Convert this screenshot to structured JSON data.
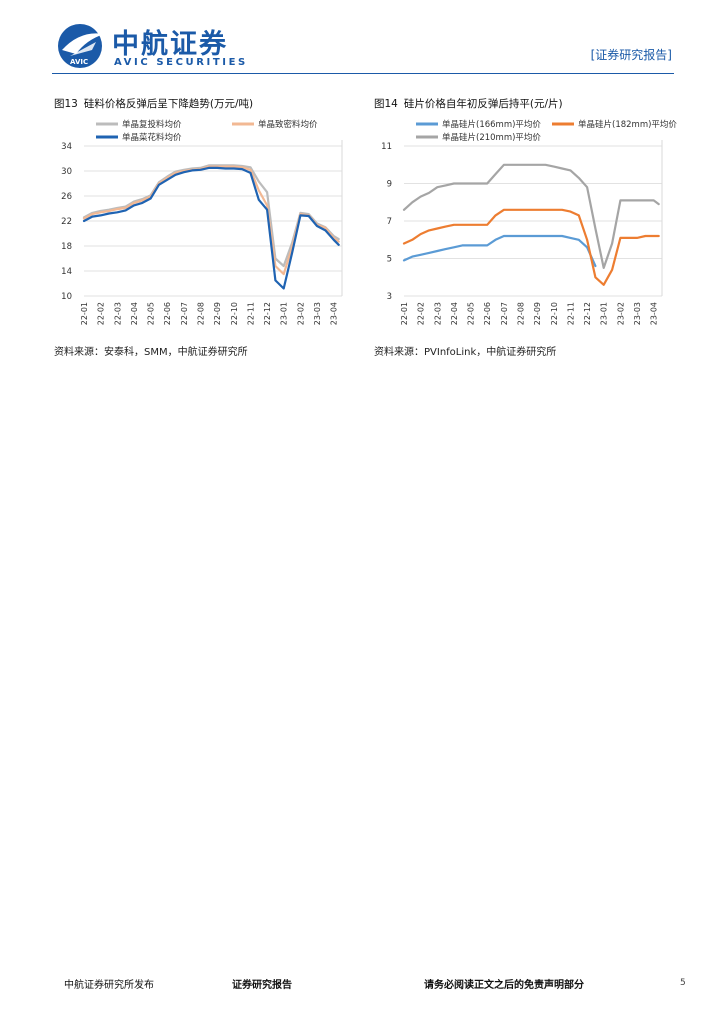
{
  "header": {
    "logo_cn": "中航证券",
    "logo_en": "AVIC SECURITIES",
    "logo_mark": "AVIC",
    "report_tag": "[证券研究报告]",
    "brand_color": "#1b5aa8"
  },
  "figures": [
    {
      "fig_no": "图13",
      "title": "硅料价格反弹后呈下降趋势(万元/吨)",
      "source": "资料来源：安泰科，SMM，中航证券研究所"
    },
    {
      "fig_no": "图14",
      "title": "硅片价格自年初反弹后持平(元/片)",
      "source": "资料来源：PVInfoLink，中航证券研究所"
    }
  ],
  "chart_data": [
    {
      "type": "line",
      "title": "硅料价格反弹后呈下降趋势(万元/吨)",
      "ylim": [
        10,
        34
      ],
      "yticks": [
        10,
        14,
        18,
        22,
        26,
        30,
        34
      ],
      "categories": [
        "22-01",
        "22-02",
        "22-03",
        "22-04",
        "22-05",
        "22-06",
        "22-07",
        "22-08",
        "22-09",
        "22-10",
        "22-11",
        "22-12",
        "23-01",
        "23-02",
        "23-03",
        "23-04"
      ],
      "x": [
        0,
        0.5,
        1,
        1.5,
        2,
        2.5,
        3,
        3.5,
        4,
        4.5,
        5,
        5.5,
        6,
        6.5,
        7,
        7.5,
        8,
        8.5,
        9,
        9.5,
        10,
        10.5,
        11,
        11.5,
        12,
        12.5,
        13,
        13.5,
        14,
        14.5,
        15,
        15.3
      ],
      "legend_position": "top",
      "series": [
        {
          "name": "单晶复投料均价",
          "color": "#bcbcbc",
          "values": [
            22.6,
            23.3,
            23.6,
            23.8,
            24.1,
            24.3,
            25.1,
            25.5,
            26.1,
            28.2,
            29.1,
            29.9,
            30.2,
            30.4,
            30.5,
            30.9,
            30.9,
            30.9,
            30.9,
            30.8,
            30.6,
            28.3,
            26.6,
            16.0,
            14.8,
            18.5,
            23.3,
            23.1,
            21.6,
            21.0,
            19.6,
            19.1
          ]
        },
        {
          "name": "单晶致密料均价",
          "color": "#f2b893",
          "values": [
            22.4,
            23.1,
            23.4,
            23.6,
            23.9,
            24.1,
            24.9,
            25.3,
            25.9,
            28.0,
            28.9,
            29.7,
            30.0,
            30.2,
            30.3,
            30.7,
            30.7,
            30.7,
            30.7,
            30.6,
            30.2,
            26.9,
            24.5,
            14.8,
            13.5,
            17.8,
            23.1,
            22.9,
            21.4,
            20.9,
            19.3,
            18.7
          ]
        },
        {
          "name": "单晶菜花料均价",
          "color": "#1f63b2",
          "values": [
            22.0,
            22.7,
            22.9,
            23.2,
            23.4,
            23.7,
            24.5,
            24.9,
            25.6,
            27.8,
            28.6,
            29.4,
            29.8,
            30.1,
            30.2,
            30.5,
            30.5,
            30.4,
            30.4,
            30.3,
            29.7,
            25.4,
            23.8,
            12.5,
            11.2,
            16.9,
            22.9,
            22.8,
            21.2,
            20.5,
            19.0,
            18.2
          ]
        }
      ]
    },
    {
      "type": "line",
      "title": "硅片价格自年初反弹后持平(元/片)",
      "ylim": [
        3,
        11
      ],
      "yticks": [
        3,
        5,
        7,
        9,
        11
      ],
      "categories": [
        "22-01",
        "22-02",
        "22-03",
        "22-04",
        "22-05",
        "22-06",
        "22-07",
        "22-08",
        "22-09",
        "22-10",
        "22-11",
        "22-12",
        "23-01",
        "23-02",
        "23-03",
        "23-04"
      ],
      "x": [
        0,
        0.5,
        1,
        1.5,
        2,
        2.5,
        3,
        3.5,
        4,
        4.5,
        5,
        5.5,
        6,
        6.5,
        7,
        7.5,
        8,
        8.5,
        9,
        9.5,
        10,
        10.5,
        11,
        11.5,
        12,
        12.5,
        13,
        13.5,
        14,
        14.5,
        15,
        15.3
      ],
      "legend_position": "top",
      "series": [
        {
          "name": "单晶硅片(166mm)平均价",
          "color": "#5b9bd5",
          "values": [
            4.9,
            5.1,
            5.2,
            5.3,
            5.4,
            5.5,
            5.6,
            5.7,
            5.7,
            5.7,
            5.7,
            6.0,
            6.2,
            6.2,
            6.2,
            6.2,
            6.2,
            6.2,
            6.2,
            6.2,
            6.1,
            6.0,
            5.6,
            4.6,
            null,
            null,
            null,
            null,
            null,
            null,
            null,
            null
          ]
        },
        {
          "name": "单晶硅片(182mm)平均价",
          "color": "#ed7d31",
          "values": [
            5.8,
            6.0,
            6.3,
            6.5,
            6.6,
            6.7,
            6.8,
            6.8,
            6.8,
            6.8,
            6.8,
            7.3,
            7.6,
            7.6,
            7.6,
            7.6,
            7.6,
            7.6,
            7.6,
            7.6,
            7.5,
            7.3,
            6.0,
            4.0,
            3.6,
            4.4,
            6.1,
            6.1,
            6.1,
            6.2,
            6.2,
            6.2
          ]
        },
        {
          "name": "单晶硅片(210mm)平均价",
          "color": "#a5a5a5",
          "values": [
            7.6,
            8.0,
            8.3,
            8.5,
            8.8,
            8.9,
            9.0,
            9.0,
            9.0,
            9.0,
            9.0,
            9.5,
            10.0,
            10.0,
            10.0,
            10.0,
            10.0,
            10.0,
            9.9,
            9.8,
            9.7,
            9.3,
            8.8,
            6.6,
            4.5,
            5.8,
            8.1,
            8.1,
            8.1,
            8.1,
            8.1,
            7.9
          ]
        }
      ]
    }
  ],
  "footer": {
    "left": "中航证券研究所发布",
    "middle": "证券研究报告",
    "right": "请务必阅读正文之后的免责声明部分",
    "page": "5"
  }
}
